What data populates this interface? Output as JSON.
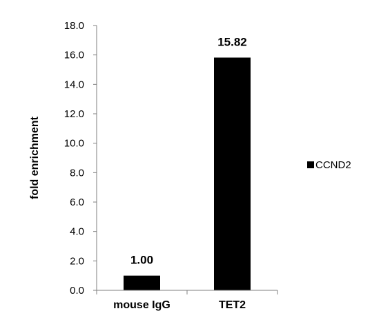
{
  "chart_data": {
    "type": "bar",
    "categories": [
      "mouse IgG",
      "TET2"
    ],
    "series": [
      {
        "name": "CCND2",
        "values": [
          1.0,
          15.82
        ]
      }
    ],
    "data_labels": [
      "1.00",
      "15.82"
    ],
    "title": "",
    "xlabel": "",
    "ylabel": "fold enrichment",
    "ylim": [
      0,
      18
    ],
    "yticks": [
      "0.0",
      "2.0",
      "4.0",
      "6.0",
      "8.0",
      "10.0",
      "12.0",
      "14.0",
      "16.0",
      "18.0"
    ],
    "grid": false,
    "legend_position": "right",
    "bar_color": "#000000"
  }
}
